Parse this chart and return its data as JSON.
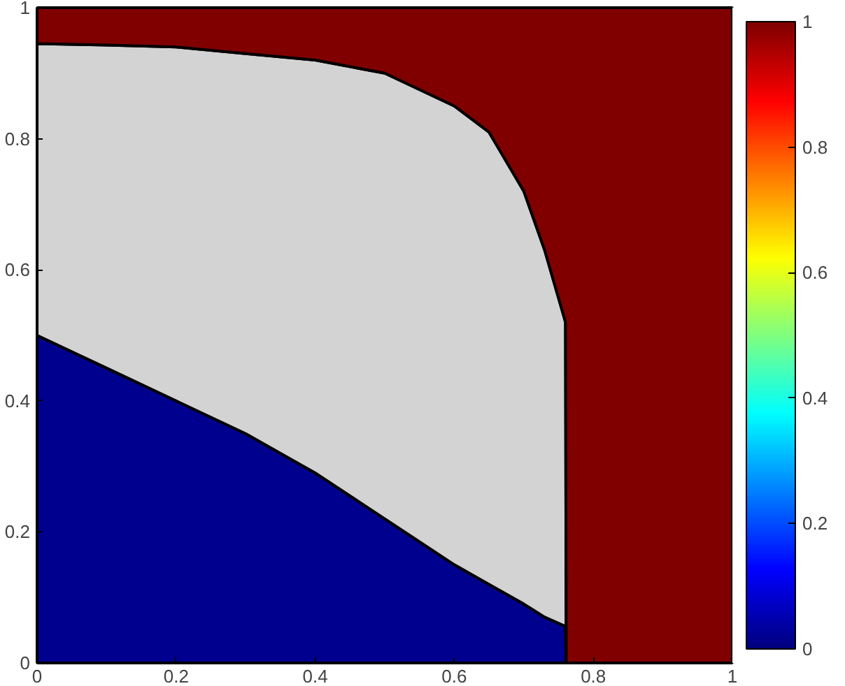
{
  "chart_data": {
    "type": "area",
    "stacked": true,
    "x": [
      0,
      0.1,
      0.2,
      0.3,
      0.4,
      0.5,
      0.6,
      0.65,
      0.7,
      0.73,
      0.76,
      0.761,
      1
    ],
    "series": [
      {
        "color": "#00008f",
        "values": [
          0.5,
          0.45,
          0.4,
          0.35,
          0.29,
          0.22,
          0.15,
          0.12,
          0.09,
          0.07,
          0.056,
          0,
          0
        ]
      },
      {
        "color": "#d3d3d3",
        "values": [
          0.445,
          0.493,
          0.54,
          0.58,
          0.63,
          0.68,
          0.7,
          0.69,
          0.63,
          0.56,
          0.464,
          0,
          0
        ]
      },
      {
        "color": "#800000",
        "values": [
          0.055,
          0.057,
          0.06,
          0.07,
          0.08,
          0.1,
          0.15,
          0.19,
          0.28,
          0.37,
          0.48,
          1,
          1
        ]
      }
    ],
    "xlim": [
      0,
      1
    ],
    "ylim": [
      0,
      1
    ],
    "xticks": [
      0,
      0.2,
      0.4,
      0.6,
      0.8,
      1
    ],
    "yticks": [
      0,
      0.2,
      0.4,
      0.6,
      0.8,
      1
    ],
    "clim": [
      0,
      1
    ],
    "cticks": [
      0,
      0.2,
      0.4,
      0.6,
      0.8,
      1
    ]
  }
}
